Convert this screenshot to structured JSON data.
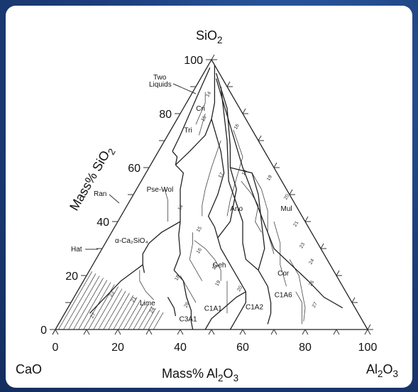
{
  "title": "",
  "chart_data": {
    "type": "ternary-phase-diagram",
    "vertices": {
      "top": {
        "base": "SiO",
        "sub": "2"
      },
      "left": "CaO",
      "right": {
        "base": "Al",
        "sub": "2",
        "suffix": "O",
        "sub2": "3"
      }
    },
    "axes": {
      "left_edge": {
        "label": "Mass% SiO",
        "label_sub": "2",
        "ticks": [
          "0",
          "20",
          "40",
          "60",
          "80",
          "100"
        ]
      },
      "bottom_edge": {
        "label": "Mass% Al",
        "label_sub": "2",
        "label_suffix": "O",
        "label_sub2": "3",
        "ticks": [
          "0",
          "20",
          "40",
          "60",
          "80",
          "100"
        ]
      }
    },
    "phase_fields": [
      {
        "name": "Cri",
        "sio2": 81,
        "al2o3": 6
      },
      {
        "name": "Tri",
        "sio2": 73,
        "al2o3": 6
      },
      {
        "name": "Pse-Wol",
        "sio2": 51,
        "al2o3": 8
      },
      {
        "name": "Ano",
        "sio2": 44,
        "al2o3": 36
      },
      {
        "name": "Mul",
        "sio2": 44,
        "al2o3": 52
      },
      {
        "name": "Geh",
        "sio2": 23,
        "al2o3": 41
      },
      {
        "name": "Cor",
        "sio2": 20,
        "al2o3": 63
      },
      {
        "name": "C1A6",
        "sio2": 12,
        "al2o3": 67
      },
      {
        "name": "C1A2",
        "sio2": 7.5,
        "al2o3": 60
      },
      {
        "name": "C1A1",
        "sio2": 7,
        "al2o3": 47
      },
      {
        "name": "C3A1",
        "sio2": 3,
        "al2o3": 41
      },
      {
        "name": "Lime",
        "sio2": 9,
        "al2o3": 25
      }
    ],
    "callouts": [
      {
        "name": "Two Liquids",
        "lines": [
          "Two",
          "Liquids"
        ]
      },
      {
        "name": "Ran",
        "text": "Ran"
      },
      {
        "name": "Hat",
        "text": "Hat"
      },
      {
        "name": "alpha-Ca2SiO4",
        "text": "α-Ca₂SiO₄"
      }
    ],
    "isotherm_labels": [
      "14",
      "15",
      "16",
      "17",
      "18",
      "19",
      "20",
      "21",
      "23",
      "24",
      "26",
      "27"
    ]
  }
}
